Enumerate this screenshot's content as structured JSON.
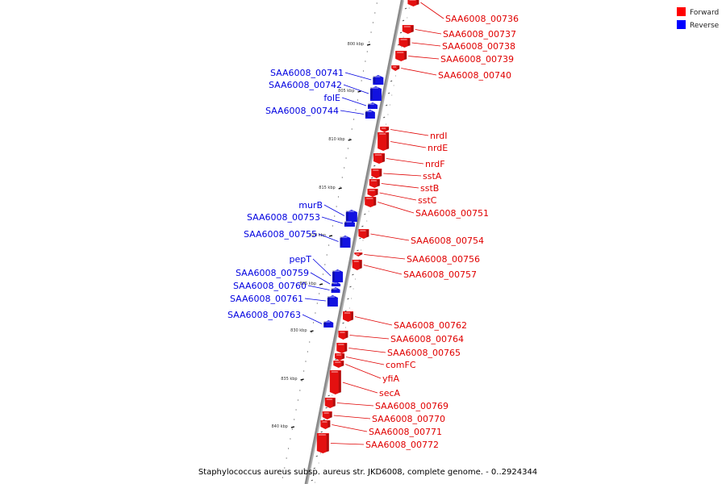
{
  "caption": "Staphylococcus aureus subsp. aureus str. JKD6008, complete genome. - 0..2924344",
  "legend": [
    {
      "label": "Forward",
      "color": "#ff0000"
    },
    {
      "label": "Reverse",
      "color": "#0000ff"
    }
  ],
  "colors": {
    "forward": "#e41010",
    "reverse": "#1212e0",
    "backbone": "#8a8a8a"
  },
  "ticks": [
    "800 kbp",
    "805 kbp",
    "810 kbp",
    "815 kbp",
    "820 kbp",
    "825 kbp",
    "830 kbp",
    "835 kbp",
    "840 kbp"
  ],
  "features": [
    {
      "name": "SAA6008_00736",
      "strand": "forward"
    },
    {
      "name": "SAA6008_00737",
      "strand": "forward"
    },
    {
      "name": "SAA6008_00738",
      "strand": "forward"
    },
    {
      "name": "SAA6008_00739",
      "strand": "forward"
    },
    {
      "name": "SAA6008_00740",
      "strand": "forward"
    },
    {
      "name": "SAA6008_00741",
      "strand": "reverse"
    },
    {
      "name": "SAA6008_00742",
      "strand": "reverse"
    },
    {
      "name": "folE",
      "strand": "reverse"
    },
    {
      "name": "SAA6008_00744",
      "strand": "reverse"
    },
    {
      "name": "nrdI",
      "strand": "forward"
    },
    {
      "name": "nrdE",
      "strand": "forward"
    },
    {
      "name": "nrdF",
      "strand": "forward"
    },
    {
      "name": "sstA",
      "strand": "forward"
    },
    {
      "name": "sstB",
      "strand": "forward"
    },
    {
      "name": "sstC",
      "strand": "forward"
    },
    {
      "name": "SAA6008_00751",
      "strand": "forward"
    },
    {
      "name": "murB",
      "strand": "reverse"
    },
    {
      "name": "SAA6008_00753",
      "strand": "reverse"
    },
    {
      "name": "SAA6008_00754",
      "strand": "forward"
    },
    {
      "name": "SAA6008_00755",
      "strand": "reverse"
    },
    {
      "name": "SAA6008_00756",
      "strand": "forward"
    },
    {
      "name": "pepT",
      "strand": "reverse"
    },
    {
      "name": "SAA6008_00757",
      "strand": "forward"
    },
    {
      "name": "SAA6008_00759",
      "strand": "reverse"
    },
    {
      "name": "SAA6008_00760",
      "strand": "reverse"
    },
    {
      "name": "SAA6008_00761",
      "strand": "reverse"
    },
    {
      "name": "SAA6008_00763",
      "strand": "reverse"
    },
    {
      "name": "SAA6008_00762",
      "strand": "forward"
    },
    {
      "name": "SAA6008_00764",
      "strand": "forward"
    },
    {
      "name": "SAA6008_00765",
      "strand": "forward"
    },
    {
      "name": "comFC",
      "strand": "forward"
    },
    {
      "name": "yfiA",
      "strand": "forward"
    },
    {
      "name": "secA",
      "strand": "forward"
    },
    {
      "name": "SAA6008_00769",
      "strand": "forward"
    },
    {
      "name": "SAA6008_00770",
      "strand": "forward"
    },
    {
      "name": "SAA6008_00771",
      "strand": "forward"
    },
    {
      "name": "SAA6008_00772",
      "strand": "forward"
    }
  ]
}
